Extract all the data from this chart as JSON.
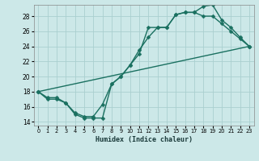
{
  "xlabel": "Humidex (Indice chaleur)",
  "bg_color": "#cce8e8",
  "grid_color": "#aacfcf",
  "line_color": "#1a7060",
  "xlim": [
    -0.5,
    23.5
  ],
  "ylim": [
    13.5,
    29.5
  ],
  "xticks": [
    0,
    1,
    2,
    3,
    4,
    5,
    6,
    7,
    8,
    9,
    10,
    11,
    12,
    13,
    14,
    15,
    16,
    17,
    18,
    19,
    20,
    21,
    22,
    23
  ],
  "yticks": [
    14,
    16,
    18,
    20,
    22,
    24,
    26,
    28
  ],
  "line1_x": [
    0,
    1,
    2,
    3,
    4,
    5,
    6,
    7,
    8,
    9,
    10,
    11,
    12,
    13,
    14,
    15,
    16,
    17,
    18,
    19,
    20,
    21,
    22,
    23
  ],
  "line1_y": [
    18,
    17,
    17,
    16.5,
    15,
    14.5,
    14.5,
    14.5,
    19,
    20,
    21.5,
    23,
    26.5,
    26.5,
    26.5,
    28.2,
    28.5,
    28.5,
    29.3,
    29.5,
    27.5,
    26.5,
    25.2,
    24
  ],
  "line2_x": [
    0,
    1,
    2,
    3,
    4,
    5,
    6,
    7,
    8,
    9,
    10,
    11,
    12,
    13,
    14,
    15,
    16,
    17,
    18,
    19,
    20,
    21,
    22,
    23
  ],
  "line2_y": [
    18,
    17.2,
    17.2,
    16.5,
    15.2,
    14.7,
    14.7,
    16.3,
    19,
    20,
    21.5,
    23.5,
    25.2,
    26.5,
    26.5,
    28.2,
    28.5,
    28.5,
    28,
    28,
    27,
    26,
    25,
    24
  ],
  "line3_x": [
    0,
    23
  ],
  "line3_y": [
    18,
    24
  ],
  "marker": "D",
  "marker_size": 2.5,
  "linewidth": 1.0
}
